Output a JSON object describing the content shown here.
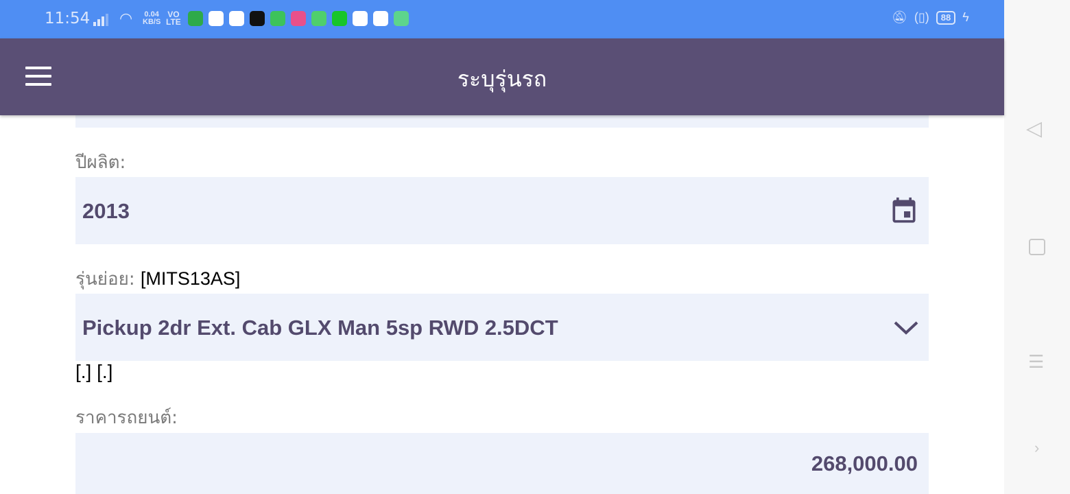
{
  "status_bar": {
    "time": "11:54",
    "net_speed": "0.04",
    "net_unit": "KB/S",
    "volte_top": "VO",
    "volte_bottom": "LTE",
    "battery": "88",
    "app_icons": [
      {
        "name": "shopping-app-icon",
        "color": "#2eaa4a"
      },
      {
        "name": "photos-icon",
        "color": "#ffffff"
      },
      {
        "name": "browser-icon",
        "color": "#ffffff"
      },
      {
        "name": "tiktok-icon",
        "color": "#111111"
      },
      {
        "name": "line-icon",
        "color": "#3dc35a"
      },
      {
        "name": "pink-app-icon",
        "color": "#e8508a"
      },
      {
        "name": "shield-app-icon",
        "color": "#4fcf6c"
      },
      {
        "name": "iqiyi-icon",
        "color": "#18c52a"
      },
      {
        "name": "chrome-icon",
        "color": "#ffffff"
      },
      {
        "name": "news-app-icon",
        "color": "#ffffff"
      },
      {
        "name": "teal-app-icon",
        "color": "#5dd58c"
      }
    ]
  },
  "app_bar": {
    "title": "ระบุรุ่นรถ"
  },
  "form": {
    "year": {
      "label": "ปีผลิต:",
      "value": "2013"
    },
    "submodel": {
      "label": "รุ่นย่อย:",
      "code": "[MITS13AS]",
      "value": "Pickup 2dr Ext. Cab GLX Man 5sp RWD 2.5DCT"
    },
    "extra": "[.] [.]",
    "price": {
      "label": "ราคารถยนต์:",
      "value": "268,000.00"
    }
  }
}
